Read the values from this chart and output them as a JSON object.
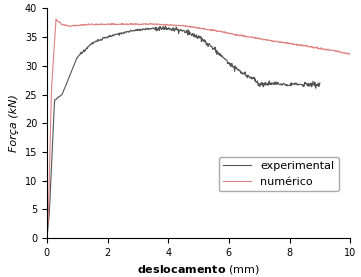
{
  "title": "",
  "xlabel": "deslocamento",
  "xlabel_unit": "(mm)",
  "ylabel": "Força (kN)",
  "xlim": [
    0,
    10
  ],
  "ylim": [
    0,
    40
  ],
  "xticks": [
    0,
    2,
    4,
    6,
    8,
    10
  ],
  "yticks": [
    0,
    5,
    10,
    15,
    20,
    25,
    30,
    35,
    40
  ],
  "experimental_color": "#555555",
  "numerical_color": "#e08080",
  "legend_labels": [
    "experimental",
    "numérico"
  ],
  "xlabel_fontsize": 8,
  "ylabel_fontsize": 8,
  "tick_fontsize": 7,
  "legend_fontsize": 8,
  "figsize": [
    3.61,
    2.77
  ],
  "dpi": 100
}
